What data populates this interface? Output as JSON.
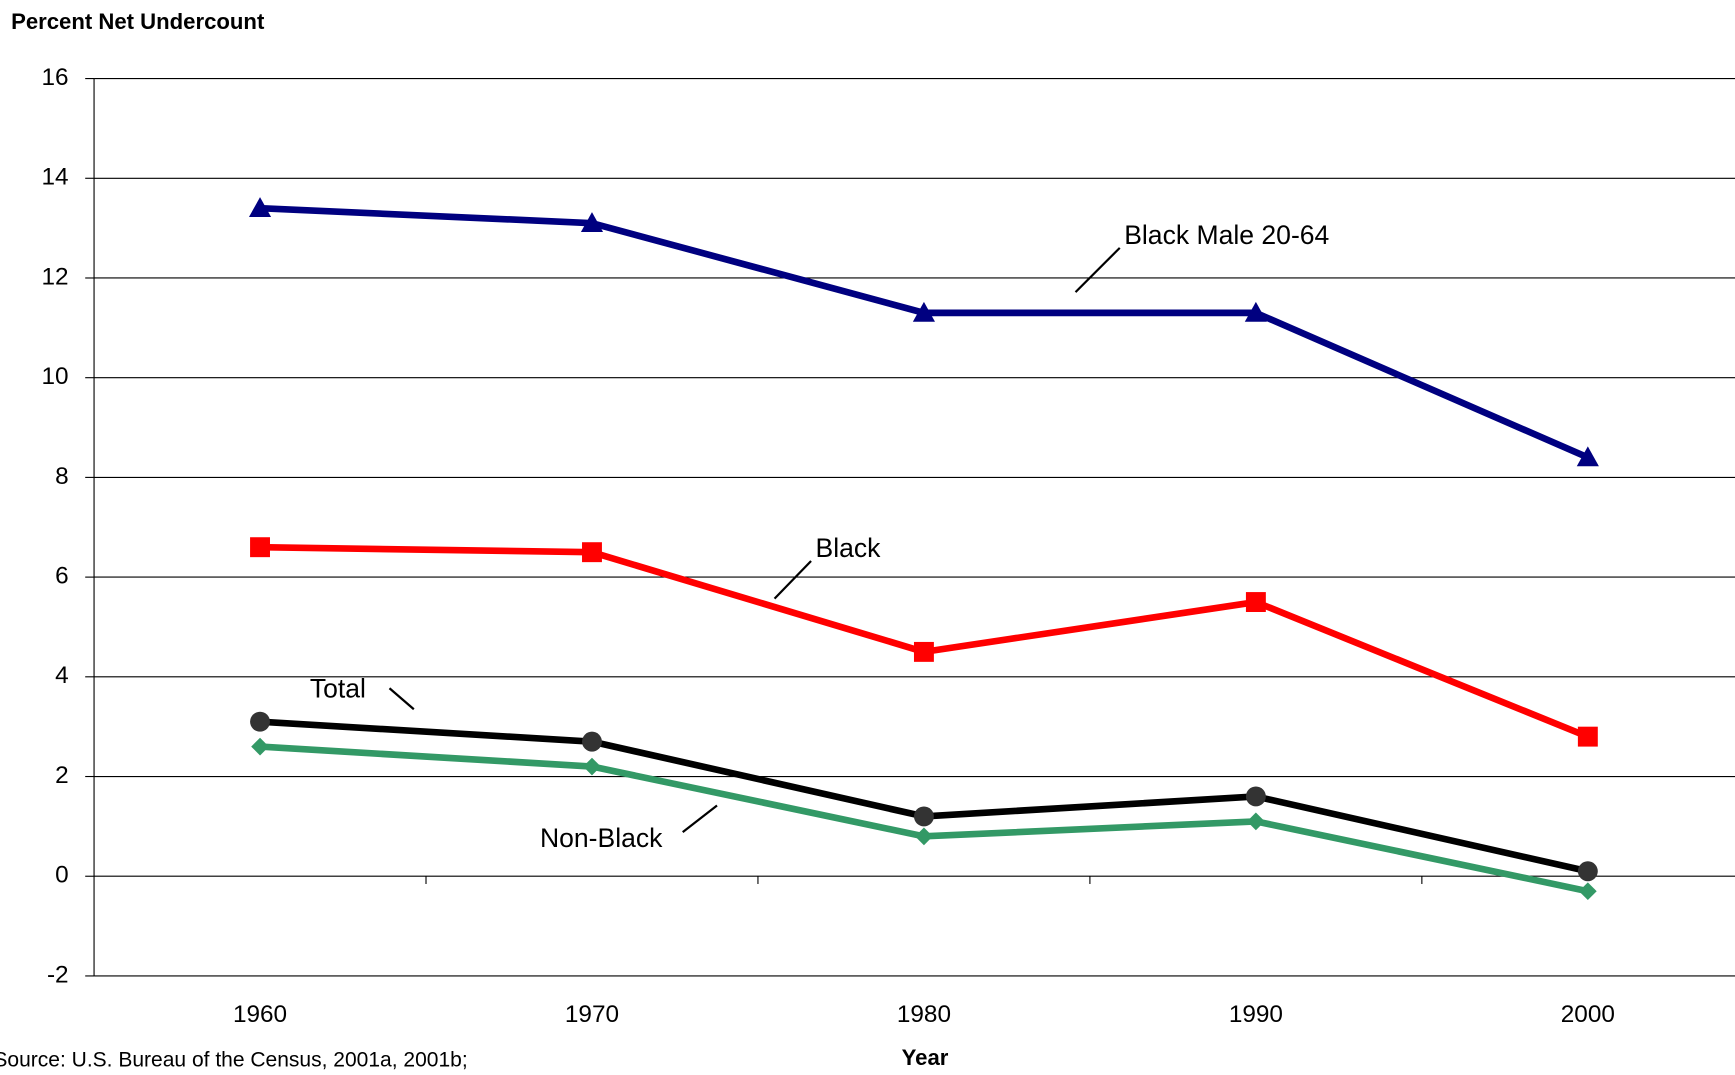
{
  "chart_data": {
    "type": "line",
    "y_axis_title": "Percent Net Undercount",
    "x_axis_title": "Year",
    "source": "Source:  U.S. Bureau of the Census, 2001a, 2001b;",
    "categories": [
      "1960",
      "1970",
      "1980",
      "1990",
      "2000"
    ],
    "ylim": [
      -2,
      16
    ],
    "yticks": [
      -2,
      0,
      2,
      4,
      6,
      8,
      10,
      12,
      14,
      16
    ],
    "grid": true,
    "series": [
      {
        "name": "Black Male 20-64",
        "color": "#000080",
        "marker": "triangle",
        "values": [
          13.4,
          13.1,
          11.3,
          11.3,
          8.4
        ]
      },
      {
        "name": "Black",
        "color": "#ff0000",
        "marker": "square",
        "values": [
          6.6,
          6.5,
          4.5,
          5.5,
          2.8
        ]
      },
      {
        "name": "Total",
        "color": "#000000",
        "marker": "circle",
        "values": [
          3.1,
          2.7,
          1.2,
          1.6,
          0.1
        ]
      },
      {
        "name": "Non-Black",
        "color": "#339966",
        "marker": "diamond",
        "values": [
          2.6,
          2.2,
          0.8,
          1.1,
          -0.3
        ]
      }
    ]
  }
}
